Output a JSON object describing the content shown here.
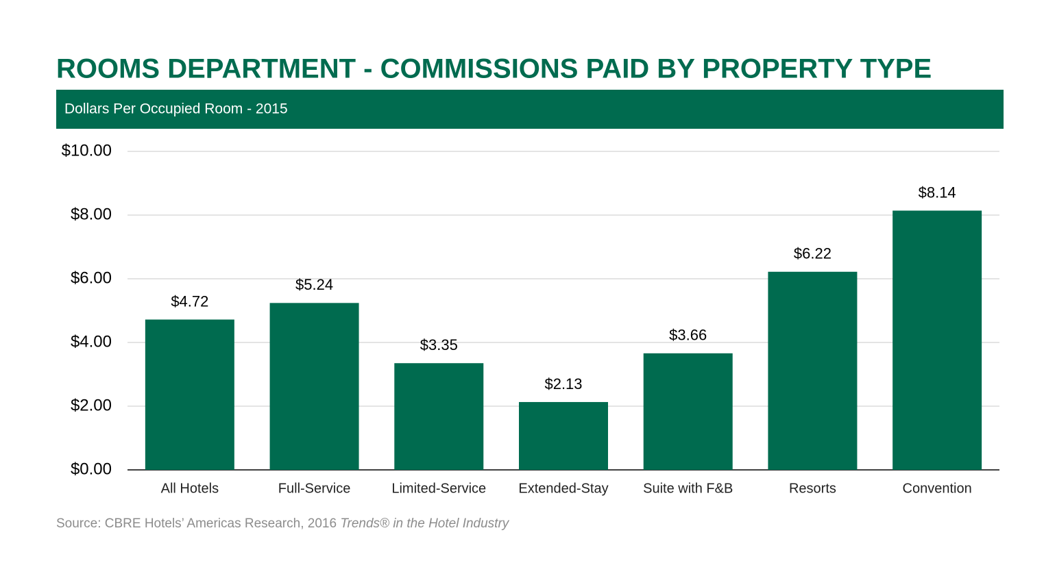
{
  "chart_data": {
    "type": "bar",
    "title": "ROOMS DEPARTMENT - COMMISSIONS PAID BY PROPERTY TYPE",
    "subtitle": "Dollars Per Occupied Room - 2015",
    "categories": [
      "All Hotels",
      "Full-Service",
      "Limited-Service",
      "Extended-Stay",
      "Suite with F&B",
      "Resorts",
      "Convention"
    ],
    "values": [
      4.72,
      5.24,
      3.35,
      2.13,
      3.66,
      6.22,
      8.14
    ],
    "value_labels": [
      "$4.72",
      "$5.24",
      "$3.35",
      "$2.13",
      "$3.66",
      "$6.22",
      "$8.14"
    ],
    "color": "#006b4f",
    "ylim": [
      0,
      10
    ],
    "yticks": [
      {
        "value": 0,
        "label": "$0.00"
      },
      {
        "value": 2,
        "label": "$2.00"
      },
      {
        "value": 4,
        "label": "$4.00"
      },
      {
        "value": 6,
        "label": "$6.00"
      },
      {
        "value": 8,
        "label": "$8.00"
      },
      {
        "value": 10,
        "label": "$10.00"
      }
    ],
    "grid": true,
    "source": "Source: CBRE Hotels’ Americas Research, 2016",
    "source_italic": "Trends® in the Hotel Industry"
  }
}
